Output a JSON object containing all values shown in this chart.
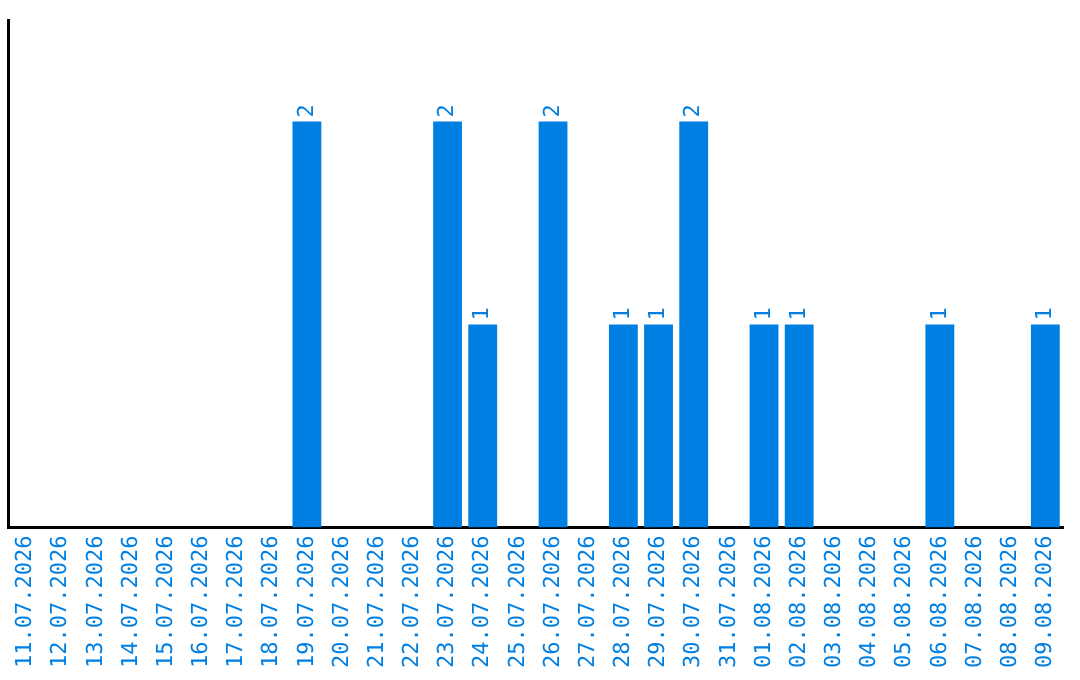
{
  "chart_data": {
    "type": "bar",
    "categories": [
      "11.07.2026",
      "12.07.2026",
      "13.07.2026",
      "14.07.2026",
      "15.07.2026",
      "16.07.2026",
      "17.07.2026",
      "18.07.2026",
      "19.07.2026",
      "20.07.2026",
      "21.07.2026",
      "22.07.2026",
      "23.07.2026",
      "24.07.2026",
      "25.07.2026",
      "26.07.2026",
      "27.07.2026",
      "28.07.2026",
      "29.07.2026",
      "30.07.2026",
      "31.07.2026",
      "01.08.2026",
      "02.08.2026",
      "03.08.2026",
      "04.08.2026",
      "05.08.2026",
      "06.08.2026",
      "07.08.2026",
      "08.08.2026",
      "09.08.2026"
    ],
    "values": [
      0,
      0,
      0,
      0,
      0,
      0,
      0,
      0,
      2,
      0,
      0,
      0,
      2,
      1,
      0,
      2,
      0,
      1,
      1,
      2,
      0,
      1,
      1,
      0,
      0,
      0,
      1,
      0,
      0,
      1
    ],
    "value_labels": [
      null,
      null,
      null,
      null,
      null,
      null,
      null,
      null,
      "2",
      null,
      null,
      null,
      "2",
      "1",
      null,
      "2",
      null,
      "1",
      "1",
      "2",
      null,
      "1",
      "1",
      null,
      null,
      null,
      "1",
      null,
      null,
      "1"
    ],
    "color": "#007fe3",
    "grid": false,
    "legend": false,
    "tick_labels": "x"
  }
}
